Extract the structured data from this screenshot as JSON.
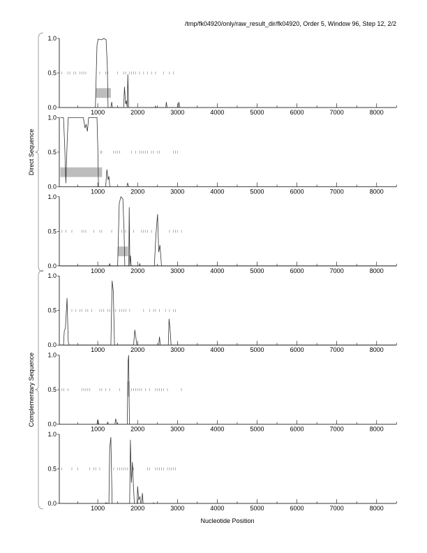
{
  "title": "/tmp/fk04920/only/raw_result_dir/fk04920, Order 5, Window 96, Step 12, 2/2",
  "chart_data": {
    "type": "line",
    "xlabel": "Nucleotide Position",
    "xlim": [
      0,
      8500
    ],
    "ylim": [
      0,
      1
    ],
    "xticks": [
      1000,
      2000,
      3000,
      4000,
      5000,
      6000,
      7000,
      8000
    ],
    "yticks": [
      "0.0",
      "0.5",
      "1.0"
    ],
    "groups": [
      {
        "label": "Direct Sequence",
        "panels": [
          0,
          1,
          2
        ]
      },
      {
        "label": "Complementary Sequence",
        "panels": [
          3,
          4,
          5
        ]
      }
    ],
    "panels": [
      {
        "points": [
          [
            60,
            0
          ],
          [
            940,
            0
          ],
          [
            980,
            0.9
          ],
          [
            1010,
            0.99
          ],
          [
            1100,
            0.98
          ],
          [
            1150,
            1.0
          ],
          [
            1210,
            0.98
          ],
          [
            1240,
            0.6
          ],
          [
            1260,
            0
          ],
          [
            1330,
            0
          ],
          [
            1350,
            0.08
          ],
          [
            1370,
            0
          ],
          [
            1650,
            0
          ],
          [
            1670,
            0.3
          ],
          [
            1700,
            0.05
          ],
          [
            1720,
            0.1
          ],
          [
            1740,
            0
          ],
          [
            1755,
            0.48
          ],
          [
            1775,
            0
          ],
          [
            2440,
            0
          ],
          [
            2450,
            0.02
          ],
          [
            2460,
            0
          ],
          [
            2710,
            0
          ],
          [
            2720,
            0.08
          ],
          [
            2740,
            0
          ],
          [
            3020,
            0
          ],
          [
            3035,
            0.08
          ],
          [
            3060,
            0
          ],
          [
            8500,
            0
          ]
        ],
        "ticks": [
          100,
          250,
          300,
          400,
          450,
          550,
          600,
          650,
          700,
          1050,
          1200,
          1250,
          1500,
          1650,
          1700,
          1800,
          1850,
          1900,
          1950,
          2050,
          2150,
          2250,
          2350,
          2450,
          2650,
          2800,
          2900
        ],
        "genes": [
          [
            950,
            1330
          ]
        ]
      },
      {
        "points": [
          [
            60,
            1.0
          ],
          [
            140,
            1.0
          ],
          [
            170,
            0.6
          ],
          [
            200,
            0.05
          ],
          [
            230,
            0.6
          ],
          [
            260,
            1.0
          ],
          [
            640,
            1.0
          ],
          [
            680,
            0.85
          ],
          [
            710,
            0.9
          ],
          [
            740,
            0.8
          ],
          [
            770,
            1.0
          ],
          [
            980,
            1.0
          ],
          [
            1000,
            0.6
          ],
          [
            1020,
            0
          ],
          [
            1200,
            0
          ],
          [
            1230,
            0.25
          ],
          [
            1260,
            0.1
          ],
          [
            1280,
            0.15
          ],
          [
            1300,
            0.02
          ],
          [
            1320,
            0
          ],
          [
            1730,
            0
          ],
          [
            1750,
            0.05
          ],
          [
            1780,
            0
          ],
          [
            8500,
            0
          ]
        ],
        "ticks": [
          1070,
          1100,
          1400,
          1450,
          1500,
          1550,
          1850,
          1950,
          2050,
          2100,
          2150,
          2200,
          2250,
          2350,
          2400,
          2500,
          2550,
          2900,
          2950,
          3000
        ],
        "genes": [
          [
            60,
            1110
          ]
        ]
      },
      {
        "points": [
          [
            60,
            0
          ],
          [
            1280,
            0
          ],
          [
            1300,
            0.03
          ],
          [
            1320,
            0
          ],
          [
            1500,
            0
          ],
          [
            1540,
            0.9
          ],
          [
            1580,
            1.0
          ],
          [
            1630,
            0.97
          ],
          [
            1660,
            0.5
          ],
          [
            1680,
            0
          ],
          [
            1780,
            0
          ],
          [
            1790,
            0.85
          ],
          [
            1805,
            0
          ],
          [
            1820,
            0.15
          ],
          [
            1840,
            0
          ],
          [
            2040,
            0
          ],
          [
            2055,
            0.03
          ],
          [
            2070,
            0
          ],
          [
            2420,
            0
          ],
          [
            2460,
            0.45
          ],
          [
            2500,
            0.75
          ],
          [
            2530,
            0.2
          ],
          [
            2560,
            0.3
          ],
          [
            2600,
            0
          ],
          [
            8500,
            0
          ]
        ],
        "ticks": [
          100,
          200,
          350,
          600,
          650,
          700,
          900,
          1050,
          1100,
          1350,
          1600,
          1700,
          1900,
          2100,
          2150,
          2200,
          2250,
          2350,
          2800,
          2900,
          2950,
          3000,
          3100
        ],
        "genes": [
          [
            1500,
            1760
          ]
        ]
      },
      {
        "points": [
          [
            60,
            0
          ],
          [
            140,
            0
          ],
          [
            160,
            0.2
          ],
          [
            190,
            0.25
          ],
          [
            230,
            0.68
          ],
          [
            260,
            0.05
          ],
          [
            280,
            0
          ],
          [
            1330,
            0
          ],
          [
            1360,
            0.93
          ],
          [
            1390,
            0.78
          ],
          [
            1420,
            0
          ],
          [
            1900,
            0
          ],
          [
            1930,
            0.22
          ],
          [
            1960,
            0.1
          ],
          [
            1980,
            0
          ],
          [
            2530,
            0
          ],
          [
            2550,
            0.12
          ],
          [
            2570,
            0
          ],
          [
            2770,
            0
          ],
          [
            2790,
            0.38
          ],
          [
            2820,
            0.2
          ],
          [
            2840,
            0
          ],
          [
            8500,
            0
          ]
        ],
        "ticks": [
          350,
          450,
          550,
          600,
          700,
          750,
          850,
          1050,
          1100,
          1150,
          1250,
          1300,
          1400,
          1450,
          1550,
          1600,
          1650,
          1700,
          1800,
          2150,
          2300,
          2400,
          2450,
          2550,
          2700,
          2800,
          2900,
          2950
        ],
        "genes": []
      },
      {
        "points": [
          [
            60,
            0
          ],
          [
            980,
            0
          ],
          [
            1000,
            0.07
          ],
          [
            1030,
            0
          ],
          [
            1230,
            0
          ],
          [
            1250,
            0.03
          ],
          [
            1270,
            0
          ],
          [
            1430,
            0
          ],
          [
            1450,
            0.08
          ],
          [
            1480,
            0
          ],
          [
            1740,
            0
          ],
          [
            1760,
            0.9
          ],
          [
            1775,
            1.0
          ],
          [
            1795,
            0
          ],
          [
            8500,
            0
          ]
        ],
        "ticks": [
          100,
          150,
          250,
          600,
          650,
          700,
          750,
          800,
          1050,
          1100,
          1200,
          1300,
          1550,
          1850,
          1900,
          1950,
          2000,
          2050,
          2100,
          2200,
          2300,
          2450,
          2500,
          2550,
          2600,
          2650,
          2750,
          3100
        ],
        "genes": [
          [
            1740,
            1800
          ]
        ]
      },
      {
        "points": [
          [
            60,
            0
          ],
          [
            1180,
            0
          ],
          [
            1200,
            0.01
          ],
          [
            1280,
            0
          ],
          [
            1300,
            0.8
          ],
          [
            1330,
            0.96
          ],
          [
            1360,
            0
          ],
          [
            1800,
            0
          ],
          [
            1820,
            0.92
          ],
          [
            1845,
            0.3
          ],
          [
            1870,
            0.6
          ],
          [
            1900,
            0.2
          ],
          [
            1920,
            0
          ],
          [
            1990,
            0
          ],
          [
            2000,
            0.25
          ],
          [
            2030,
            0.05
          ],
          [
            2060,
            0.1
          ],
          [
            2080,
            0
          ],
          [
            2100,
            0
          ],
          [
            2120,
            0.15
          ],
          [
            2140,
            0
          ],
          [
            2390,
            0
          ],
          [
            2400,
            0.01
          ],
          [
            2420,
            0
          ],
          [
            8500,
            0
          ]
        ],
        "ticks": [
          100,
          350,
          500,
          800,
          900,
          950,
          1050,
          1400,
          1500,
          1550,
          1600,
          1650,
          1700,
          1750,
          1900,
          2250,
          2300,
          2450,
          2500,
          2550,
          2600,
          2650,
          2750,
          2800,
          2850,
          2900,
          2950
        ],
        "genes": []
      }
    ],
    "colors": {
      "line": "#333333",
      "gene": "#bdbdbd",
      "tick": "#999999"
    }
  }
}
